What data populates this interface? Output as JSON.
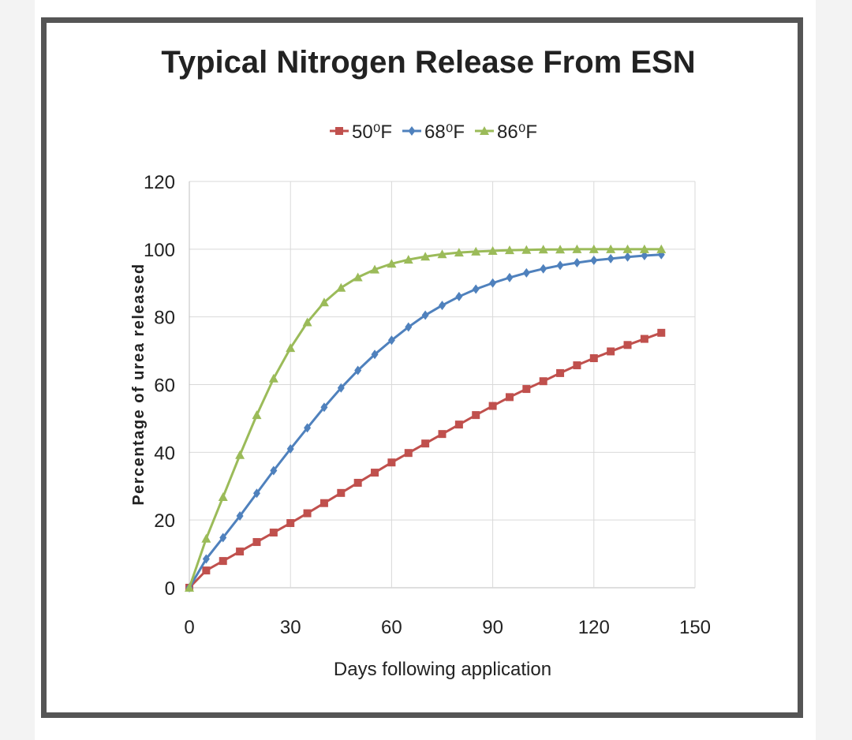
{
  "chart_data": {
    "type": "line",
    "title": "Typical Nitrogen Release From ESN",
    "xlabel": "Days following application",
    "ylabel": "Percentage of urea released",
    "xlim": [
      0,
      150
    ],
    "ylim": [
      0,
      120
    ],
    "xticks": [
      0,
      30,
      60,
      90,
      120,
      150
    ],
    "yticks": [
      0,
      20,
      40,
      60,
      80,
      100,
      120
    ],
    "x": [
      0,
      5,
      10,
      15,
      20,
      25,
      30,
      35,
      40,
      45,
      50,
      55,
      60,
      65,
      70,
      75,
      80,
      85,
      90,
      95,
      100,
      105,
      110,
      115,
      120,
      125,
      130,
      135,
      140
    ],
    "legend_position": "top",
    "grid": true,
    "series": [
      {
        "name": "50⁰F",
        "color": "#c0504d",
        "marker": "square",
        "values": [
          0,
          5.1,
          7.9,
          10.7,
          13.5,
          16.3,
          19.1,
          22.0,
          25.0,
          28.0,
          31.0,
          34.0,
          37.0,
          39.8,
          42.6,
          45.4,
          48.2,
          51.0,
          53.7,
          56.3,
          58.7,
          61.0,
          63.4,
          65.7,
          67.8,
          69.8,
          71.7,
          73.5,
          75.3
        ]
      },
      {
        "name": "68⁰F",
        "color": "#4f81bd",
        "marker": "diamond",
        "values": [
          0,
          8.5,
          14.8,
          21.2,
          27.9,
          34.6,
          41.0,
          47.2,
          53.3,
          59.0,
          64.2,
          68.9,
          73.1,
          77.0,
          80.5,
          83.4,
          86.0,
          88.2,
          90.0,
          91.6,
          93.0,
          94.2,
          95.2,
          96.0,
          96.7,
          97.2,
          97.7,
          98.1,
          98.4
        ]
      },
      {
        "name": "86⁰F",
        "color": "#9bbb59",
        "marker": "triangle",
        "values": [
          0,
          14.5,
          26.8,
          39.2,
          51.0,
          61.8,
          70.8,
          78.4,
          84.3,
          88.6,
          91.7,
          94.0,
          95.7,
          96.9,
          97.8,
          98.5,
          99.0,
          99.3,
          99.5,
          99.7,
          99.8,
          99.9,
          99.9,
          100,
          100,
          100,
          100,
          100,
          100
        ]
      }
    ]
  }
}
